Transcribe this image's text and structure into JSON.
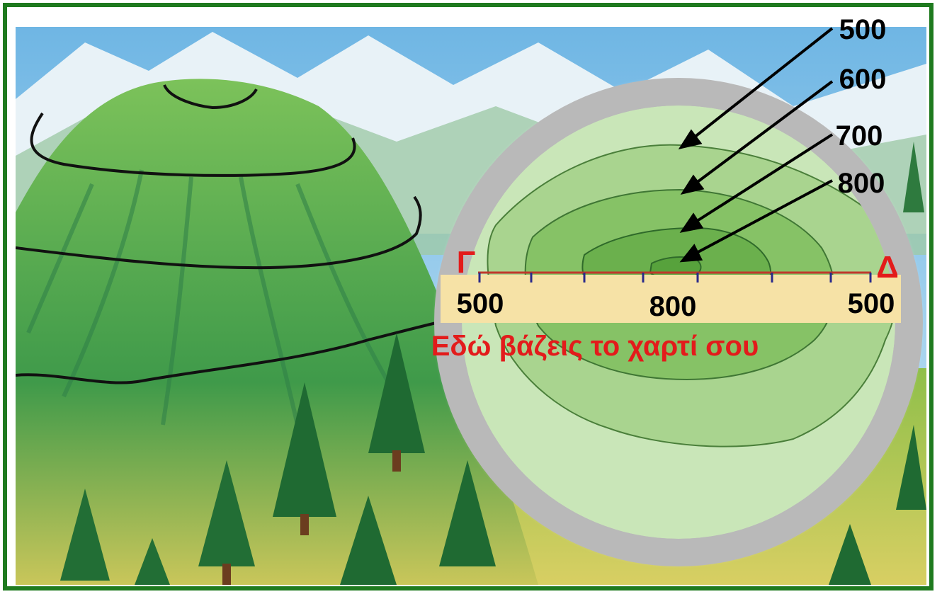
{
  "colors": {
    "frame": "#1f7a1f",
    "sky": "#7fc0e8",
    "mountain": "#5aa84a",
    "lens_ring": "#b9b9b9",
    "strip": "#f6e2a6",
    "section_line": "#c0392b",
    "title_text": "#e31b1b",
    "arrow": "#000000"
  },
  "map": {
    "contour_labels": [
      "500",
      "600",
      "700",
      "800"
    ],
    "endpoint_left": "Γ",
    "endpoint_right": "Δ",
    "strip_left_value": "500",
    "strip_center_value": "800",
    "strip_right_value": "500",
    "caption": "Εδώ βάζεις το χαρτί σου"
  },
  "icons": [
    "mountain-illustration",
    "tree-icon",
    "contour-map",
    "arrow-icon"
  ]
}
